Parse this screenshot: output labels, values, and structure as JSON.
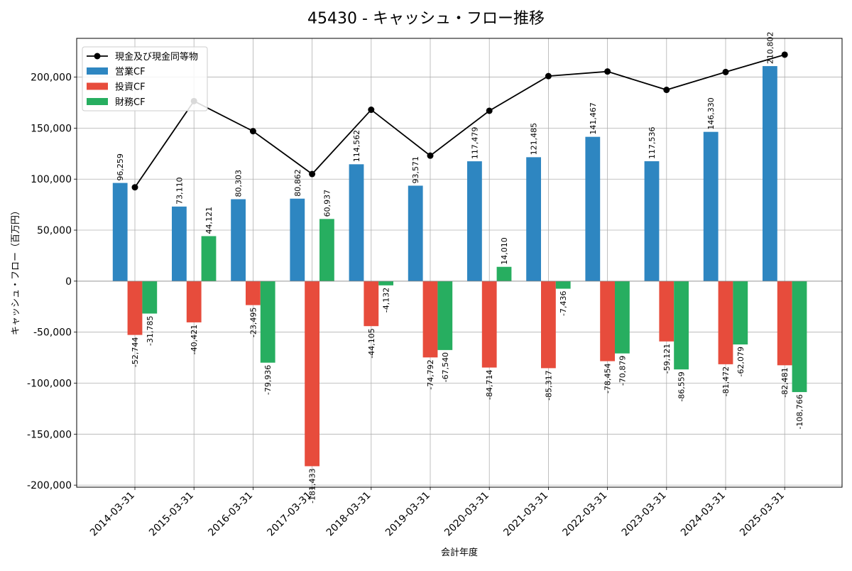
{
  "chart_data": {
    "type": "bar",
    "title": "45430 - キャッシュ・フロー推移",
    "xlabel": "会計年度",
    "ylabel": "キャッシュ・フロー（百万円）",
    "categories": [
      "2014-03-31",
      "2015-03-31",
      "2016-03-31",
      "2017-03-31",
      "2018-03-31",
      "2019-03-31",
      "2020-03-31",
      "2021-03-31",
      "2022-03-31",
      "2023-03-31",
      "2024-03-31",
      "2025-03-31"
    ],
    "series": [
      {
        "name": "営業CF",
        "color": "#2e86c1",
        "values": [
          96259,
          73110,
          80303,
          80862,
          114562,
          93571,
          117479,
          121485,
          141467,
          117536,
          146330,
          210802
        ],
        "labels": [
          "96,259",
          "73,110",
          "80,303",
          "80,862",
          "114,562",
          "93,571",
          "117,479",
          "121,485",
          "141,467",
          "117,536",
          "146,330",
          "210,802"
        ]
      },
      {
        "name": "投資CF",
        "color": "#e74c3c",
        "values": [
          -52744,
          -40421,
          -23495,
          -181433,
          -44105,
          -74792,
          -84714,
          -85317,
          -78454,
          -59121,
          -81472,
          -82481
        ],
        "labels": [
          "-52,744",
          "-40,421",
          "-23,495",
          "-181,433",
          "-44,105",
          "-74,792",
          "-84,714",
          "-85,317",
          "-78,454",
          "-59,121",
          "-81,472",
          "-82,481"
        ]
      },
      {
        "name": "財務CF",
        "color": "#27ae60",
        "values": [
          -31785,
          44121,
          -79936,
          60937,
          -4132,
          -67540,
          14010,
          -7436,
          -70879,
          -86559,
          -62079,
          -108766
        ],
        "labels": [
          "-31,785",
          "44,121",
          "-79,936",
          "60,937",
          "-4,132",
          "-67,540",
          "14,010",
          "-7,436",
          "-70,879",
          "-86,559",
          "-62,079",
          "-108,766"
        ]
      }
    ],
    "line_series": {
      "name": "現金及び現金同等物",
      "color": "#000000",
      "values": [
        92000,
        176500,
        147000,
        105000,
        168000,
        123000,
        167000,
        201000,
        205500,
        187500,
        205000,
        222000
      ]
    },
    "ylim": [
      -202000,
      238000
    ],
    "yticks": [
      -200000,
      -150000,
      -100000,
      -50000,
      0,
      50000,
      100000,
      150000,
      200000
    ],
    "ytick_labels": [
      "-200,000",
      "-150,000",
      "-100,000",
      "-50,000",
      "0",
      "50,000",
      "100,000",
      "150,000",
      "200,000"
    ],
    "grid": true,
    "legend_position": "top-left"
  }
}
